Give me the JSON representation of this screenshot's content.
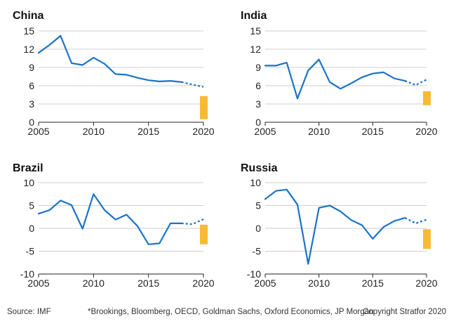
{
  "footer": {
    "source": "Source: IMF",
    "forecasters": "*Brookings, Bloomberg, OECD, Goldman Sachs, Oxford Economics, JP Morgan",
    "copyright": "Copyright Stratfor 2020"
  },
  "colors": {
    "line": "#1a73c9",
    "forecast_band": "#f8b936",
    "grid": "#cfcfcf",
    "axis": "#222222"
  },
  "chart_data": [
    {
      "type": "line",
      "title": "China",
      "xlabel": "",
      "ylabel": "",
      "xlim": [
        2005,
        2020
      ],
      "ylim": [
        0,
        15
      ],
      "yticks": [
        0,
        3,
        6,
        9,
        12,
        15
      ],
      "xticks": [
        2005,
        2010,
        2015,
        2020
      ],
      "grid": true,
      "series": [
        {
          "style": "solid",
          "x": [
            2005,
            2006,
            2007,
            2008,
            2009,
            2010,
            2011,
            2012,
            2013,
            2014,
            2015,
            2016,
            2017,
            2018
          ],
          "y": [
            11.4,
            12.7,
            14.2,
            9.7,
            9.4,
            10.6,
            9.6,
            7.9,
            7.8,
            7.3,
            6.9,
            6.7,
            6.8,
            6.6
          ]
        },
        {
          "style": "dotted",
          "x": [
            2018,
            2019,
            2020
          ],
          "y": [
            6.6,
            6.2,
            5.8
          ]
        }
      ],
      "forecast_range": {
        "x": 2020,
        "low": 0.5,
        "high": 4.3
      }
    },
    {
      "type": "line",
      "title": "India",
      "xlabel": "",
      "ylabel": "",
      "xlim": [
        2005,
        2020
      ],
      "ylim": [
        0,
        15
      ],
      "yticks": [
        0,
        3,
        6,
        9,
        12,
        15
      ],
      "xticks": [
        2005,
        2010,
        2015,
        2020
      ],
      "grid": true,
      "series": [
        {
          "style": "solid",
          "x": [
            2005,
            2006,
            2007,
            2008,
            2009,
            2010,
            2011,
            2012,
            2013,
            2014,
            2015,
            2016,
            2017,
            2018
          ],
          "y": [
            9.3,
            9.3,
            9.8,
            3.9,
            8.5,
            10.3,
            6.6,
            5.5,
            6.4,
            7.4,
            8.0,
            8.2,
            7.2,
            6.8
          ]
        },
        {
          "style": "dotted",
          "x": [
            2018,
            2019,
            2020
          ],
          "y": [
            6.8,
            6.1,
            7.0
          ]
        }
      ],
      "forecast_range": {
        "x": 2020,
        "low": 2.8,
        "high": 5.1
      }
    },
    {
      "type": "line",
      "title": "Brazil",
      "xlabel": "",
      "ylabel": "",
      "xlim": [
        2005,
        2020
      ],
      "ylim": [
        -10,
        10
      ],
      "yticks": [
        -10,
        -5,
        0,
        5,
        10
      ],
      "xticks": [
        2005,
        2010,
        2015,
        2020
      ],
      "grid": true,
      "series": [
        {
          "style": "solid",
          "x": [
            2005,
            2006,
            2007,
            2008,
            2009,
            2010,
            2011,
            2012,
            2013,
            2014,
            2015,
            2016,
            2017,
            2018
          ],
          "y": [
            3.2,
            4.0,
            6.1,
            5.1,
            -0.1,
            7.5,
            4.0,
            1.9,
            3.0,
            0.5,
            -3.5,
            -3.3,
            1.1,
            1.1
          ]
        },
        {
          "style": "dotted",
          "x": [
            2018,
            2019,
            2020
          ],
          "y": [
            1.1,
            0.9,
            2.0
          ]
        }
      ],
      "forecast_range": {
        "x": 2020,
        "low": -3.5,
        "high": 0.8
      }
    },
    {
      "type": "line",
      "title": "Russia",
      "xlabel": "",
      "ylabel": "",
      "xlim": [
        2005,
        2020
      ],
      "ylim": [
        -10,
        10
      ],
      "yticks": [
        -10,
        -5,
        0,
        5,
        10
      ],
      "xticks": [
        2005,
        2010,
        2015,
        2020
      ],
      "grid": true,
      "series": [
        {
          "style": "solid",
          "x": [
            2005,
            2006,
            2007,
            2008,
            2009,
            2010,
            2011,
            2012,
            2013,
            2014,
            2015,
            2016,
            2017,
            2018
          ],
          "y": [
            6.4,
            8.2,
            8.5,
            5.2,
            -7.8,
            4.5,
            5.0,
            3.7,
            1.8,
            0.7,
            -2.3,
            0.3,
            1.6,
            2.3
          ]
        },
        {
          "style": "dotted",
          "x": [
            2018,
            2019,
            2020
          ],
          "y": [
            2.3,
            1.1,
            1.9
          ]
        }
      ],
      "forecast_range": {
        "x": 2020,
        "low": -4.5,
        "high": -0.2
      }
    }
  ]
}
